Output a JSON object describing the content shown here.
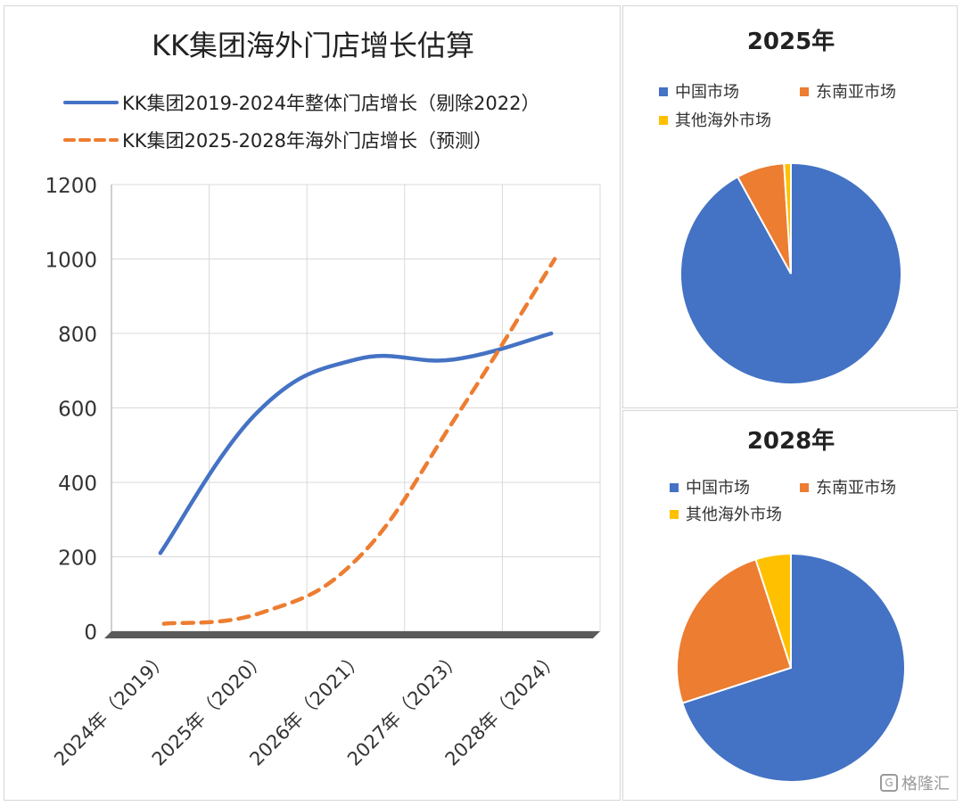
{
  "colors": {
    "china": "#4472C4",
    "sea": "#ED7D31",
    "other": "#FFC000",
    "line_actual": "#4472C4",
    "line_forecast": "#ED7D31",
    "grid": "#d9d9d9",
    "axis": "#555555"
  },
  "chart_data": [
    {
      "type": "line",
      "title": "KK集团海外门店增长估算",
      "categories": [
        "2024年（2019）",
        "2025年（2020）",
        "2026年（2021）",
        "2027年（2023）",
        "2028年（2024）"
      ],
      "series": [
        {
          "name": "KK集团2019-2024年整体门店增长（剔除2022）",
          "style": "solid",
          "values": [
            210,
            590,
            730,
            730,
            800
          ]
        },
        {
          "name": "KK集团2025-2028年海外门店增长（预测）",
          "style": "dashed",
          "values": [
            20,
            50,
            200,
            580,
            1000
          ]
        }
      ],
      "ylim": [
        0,
        1200
      ],
      "yticks": [
        0,
        200,
        400,
        600,
        800,
        1000,
        1200
      ],
      "grid": true,
      "legend": "top"
    },
    {
      "type": "pie",
      "title": "2025年",
      "labels": [
        "中国市场",
        "东南亚市场",
        "其他海外市场"
      ],
      "values": [
        92,
        7,
        1
      ],
      "legend": "top"
    },
    {
      "type": "pie",
      "title": "2028年",
      "labels": [
        "中国市场",
        "东南亚市场",
        "其他海外市场"
      ],
      "values": [
        70,
        25,
        5
      ],
      "legend": "top"
    }
  ],
  "watermark": "格隆汇"
}
